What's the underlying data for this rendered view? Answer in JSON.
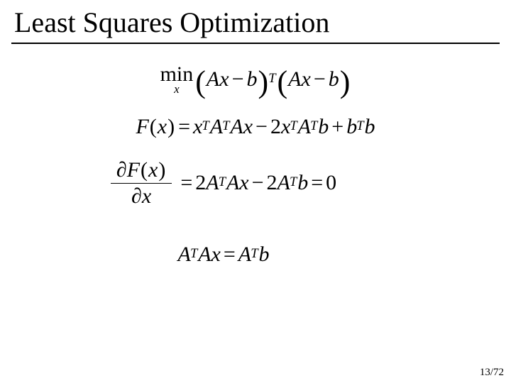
{
  "slide": {
    "title": "Least Squares Optimization",
    "title_fontsize": 40,
    "title_color": "#000000",
    "rule_color": "#000000",
    "background_color": "#ffffff",
    "eq_fontsize": 30,
    "font_family": "Times New Roman"
  },
  "eq1": {
    "min_label": "min",
    "min_sub": "x",
    "lparen1": "(",
    "A1": "A",
    "x1": "x",
    "minus1": "−",
    "b1": "b",
    "rparen1": ")",
    "T1": "T",
    "lparen2": "(",
    "A2": "A",
    "x2": "x",
    "minus2": "−",
    "b2": "b",
    "rparen2": ")"
  },
  "eq2": {
    "F": "F",
    "lpar": "(",
    "x": "x",
    "rpar": ")",
    "eq": "=",
    "x1": "x",
    "T1": "T",
    "A1": "A",
    "T2": "T",
    "A2": "A",
    "x2": "x",
    "minus": "−",
    "two1": "2",
    "x3": "x",
    "T3": "T",
    "A3": "A",
    "T4": "T",
    "b1": "b",
    "plus": "+",
    "b2": "b",
    "T5": "T",
    "b3": "b"
  },
  "eq3": {
    "d1": "∂",
    "F": "F",
    "lp": "(",
    "xa": "x",
    "rp": ")",
    "d2": "∂",
    "xb": "x",
    "eq": "=",
    "two1": "2",
    "A1": "A",
    "T1": "T",
    "A2": "A",
    "x1": "x",
    "minus": "−",
    "two2": "2",
    "A3": "A",
    "T2": "T",
    "b": "b",
    "eq2": "=",
    "zero": "0"
  },
  "eq4": {
    "A1": "A",
    "T1": "T",
    "A2": "A",
    "x": "x",
    "eq": "=",
    "A3": "A",
    "T2": "T",
    "b": "b"
  },
  "pager": {
    "current": "13",
    "sep": "/",
    "total": "72"
  }
}
